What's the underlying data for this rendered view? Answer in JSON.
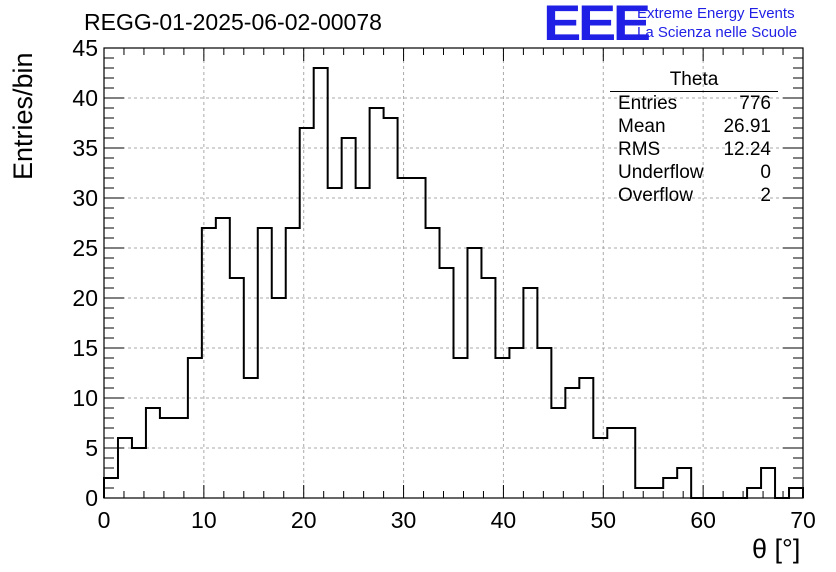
{
  "title": "REGG-01-2025-06-02-00078",
  "logo": {
    "mark": "EEE",
    "line1": "Extreme Energy Events",
    "line2": "La Scienza nelle Scuole",
    "color": "#1f1fe6"
  },
  "stats": {
    "title": "Theta",
    "rows": [
      {
        "label": "Entries",
        "value": "776"
      },
      {
        "label": "Mean",
        "value": "26.91"
      },
      {
        "label": "RMS",
        "value": "12.24"
      },
      {
        "label": "Underflow",
        "value": "0"
      },
      {
        "label": "Overflow",
        "value": "2"
      }
    ]
  },
  "chart_data": {
    "type": "histogram",
    "xlabel": "θ [°]",
    "ylabel": "Entries/bin",
    "xlim": [
      0,
      70
    ],
    "ylim": [
      0,
      45
    ],
    "bin_width": 1.4,
    "x_ticks": [
      0,
      10,
      20,
      30,
      40,
      50,
      60,
      70
    ],
    "y_ticks": [
      0,
      5,
      10,
      15,
      20,
      25,
      30,
      35,
      40,
      45
    ],
    "grid": true,
    "values": [
      2,
      6,
      5,
      9,
      8,
      8,
      14,
      27,
      28,
      22,
      12,
      27,
      20,
      27,
      37,
      43,
      31,
      36,
      31,
      39,
      38,
      32,
      32,
      27,
      23,
      14,
      25,
      22,
      14,
      15,
      21,
      15,
      9,
      11,
      12,
      6,
      7,
      7,
      1,
      1,
      2,
      3,
      0,
      0,
      0,
      0,
      1,
      3,
      0,
      1
    ]
  }
}
